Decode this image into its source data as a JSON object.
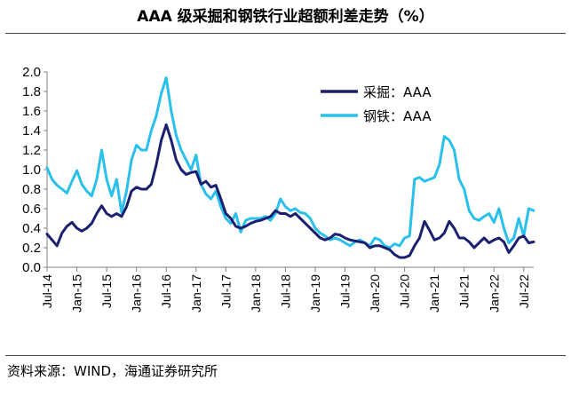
{
  "title": "AAA 级采掘和钢铁行业超额利差走势（%）",
  "source": "资料来源：WIND，海通证券研究所",
  "colors": {
    "mining": "#1a1f6e",
    "steel": "#29c0ec",
    "axis": "#808080"
  },
  "chart_data": {
    "type": "line",
    "title": "AAA 级采掘和钢铁行业超额利差走势（%）",
    "xlabel": "",
    "ylabel": "",
    "ylim": [
      0,
      2.0
    ],
    "yticks": [
      "2.0",
      "1.8",
      "1.6",
      "1.4",
      "1.2",
      "1.0",
      "0.8",
      "0.6",
      "0.4",
      "0.2",
      "0.0"
    ],
    "xlim": [
      0,
      98
    ],
    "xticks": [
      {
        "t": 0,
        "label": "Jul-14"
      },
      {
        "t": 6,
        "label": "Jan-15"
      },
      {
        "t": 12,
        "label": "Jul-15"
      },
      {
        "t": 18,
        "label": "Jan-16"
      },
      {
        "t": 24,
        "label": "Jul-16"
      },
      {
        "t": 30,
        "label": "Jan-17"
      },
      {
        "t": 36,
        "label": "Jul-17"
      },
      {
        "t": 42,
        "label": "Jan-18"
      },
      {
        "t": 48,
        "label": "Jul-18"
      },
      {
        "t": 54,
        "label": "Jan-19"
      },
      {
        "t": 60,
        "label": "Jul-19"
      },
      {
        "t": 66,
        "label": "Jan-20"
      },
      {
        "t": 72,
        "label": "Jul-20"
      },
      {
        "t": 78,
        "label": "Jan-21"
      },
      {
        "t": 84,
        "label": "Jul-21"
      },
      {
        "t": 90,
        "label": "Jan-22"
      },
      {
        "t": 96,
        "label": "Jul-22"
      }
    ],
    "legend_position": "top-right",
    "series": [
      {
        "name": "采掘：AAA",
        "points": [
          [
            0,
            0.34
          ],
          [
            1,
            0.28
          ],
          [
            2,
            0.22
          ],
          [
            3,
            0.35
          ],
          [
            4,
            0.42
          ],
          [
            5,
            0.46
          ],
          [
            6,
            0.4
          ],
          [
            7,
            0.37
          ],
          [
            8,
            0.4
          ],
          [
            9,
            0.45
          ],
          [
            10,
            0.55
          ],
          [
            11,
            0.63
          ],
          [
            12,
            0.55
          ],
          [
            13,
            0.52
          ],
          [
            14,
            0.55
          ],
          [
            15,
            0.52
          ],
          [
            16,
            0.62
          ],
          [
            17,
            0.78
          ],
          [
            18,
            0.82
          ],
          [
            19,
            0.8
          ],
          [
            20,
            0.8
          ],
          [
            21,
            0.85
          ],
          [
            22,
            1.05
          ],
          [
            23,
            1.3
          ],
          [
            24,
            1.46
          ],
          [
            25,
            1.3
          ],
          [
            26,
            1.1
          ],
          [
            27,
            1.0
          ],
          [
            28,
            0.95
          ],
          [
            29,
            0.97
          ],
          [
            30,
            0.98
          ],
          [
            31,
            0.85
          ],
          [
            32,
            0.88
          ],
          [
            33,
            0.82
          ],
          [
            34,
            0.84
          ],
          [
            35,
            0.7
          ],
          [
            36,
            0.55
          ],
          [
            37,
            0.5
          ],
          [
            38,
            0.42
          ],
          [
            39,
            0.4
          ],
          [
            40,
            0.42
          ],
          [
            41,
            0.45
          ],
          [
            42,
            0.47
          ],
          [
            43,
            0.48
          ],
          [
            44,
            0.5
          ],
          [
            45,
            0.52
          ],
          [
            46,
            0.58
          ],
          [
            47,
            0.55
          ],
          [
            48,
            0.55
          ],
          [
            49,
            0.52
          ],
          [
            50,
            0.55
          ],
          [
            51,
            0.5
          ],
          [
            52,
            0.45
          ],
          [
            53,
            0.4
          ],
          [
            54,
            0.35
          ],
          [
            55,
            0.3
          ],
          [
            56,
            0.28
          ],
          [
            57,
            0.3
          ],
          [
            58,
            0.34
          ],
          [
            59,
            0.33
          ],
          [
            60,
            0.3
          ],
          [
            61,
            0.28
          ],
          [
            62,
            0.27
          ],
          [
            63,
            0.26
          ],
          [
            64,
            0.25
          ],
          [
            65,
            0.2
          ],
          [
            66,
            0.22
          ],
          [
            67,
            0.22
          ],
          [
            68,
            0.2
          ],
          [
            69,
            0.18
          ],
          [
            70,
            0.13
          ],
          [
            71,
            0.1
          ],
          [
            72,
            0.1
          ],
          [
            73,
            0.12
          ],
          [
            74,
            0.22
          ],
          [
            75,
            0.3
          ],
          [
            76,
            0.47
          ],
          [
            77,
            0.38
          ],
          [
            78,
            0.28
          ],
          [
            79,
            0.3
          ],
          [
            80,
            0.35
          ],
          [
            81,
            0.47
          ],
          [
            82,
            0.4
          ],
          [
            83,
            0.3
          ],
          [
            84,
            0.3
          ],
          [
            85,
            0.26
          ],
          [
            86,
            0.2
          ],
          [
            87,
            0.25
          ],
          [
            88,
            0.3
          ],
          [
            89,
            0.25
          ],
          [
            90,
            0.28
          ],
          [
            91,
            0.3
          ],
          [
            92,
            0.26
          ],
          [
            93,
            0.15
          ],
          [
            94,
            0.22
          ],
          [
            95,
            0.3
          ],
          [
            96,
            0.32
          ],
          [
            97,
            0.25
          ],
          [
            98,
            0.26
          ]
        ]
      },
      {
        "name": "钢铁：AAA",
        "points": [
          [
            0,
            1.02
          ],
          [
            1,
            0.9
          ],
          [
            2,
            0.84
          ],
          [
            3,
            0.8
          ],
          [
            4,
            0.76
          ],
          [
            5,
            0.88
          ],
          [
            6,
            0.99
          ],
          [
            7,
            0.85
          ],
          [
            8,
            0.78
          ],
          [
            9,
            0.73
          ],
          [
            10,
            0.9
          ],
          [
            11,
            1.2
          ],
          [
            12,
            0.9
          ],
          [
            13,
            0.73
          ],
          [
            14,
            0.9
          ],
          [
            15,
            0.56
          ],
          [
            16,
            0.78
          ],
          [
            17,
            1.1
          ],
          [
            18,
            1.25
          ],
          [
            19,
            1.2
          ],
          [
            20,
            1.2
          ],
          [
            21,
            1.4
          ],
          [
            22,
            1.55
          ],
          [
            23,
            1.78
          ],
          [
            24,
            1.94
          ],
          [
            25,
            1.6
          ],
          [
            26,
            1.35
          ],
          [
            27,
            1.2
          ],
          [
            28,
            1.1
          ],
          [
            29,
            1.0
          ],
          [
            30,
            1.15
          ],
          [
            31,
            0.85
          ],
          [
            32,
            0.75
          ],
          [
            33,
            0.7
          ],
          [
            34,
            0.78
          ],
          [
            35,
            0.62
          ],
          [
            36,
            0.5
          ],
          [
            37,
            0.45
          ],
          [
            38,
            0.55
          ],
          [
            39,
            0.36
          ],
          [
            40,
            0.48
          ],
          [
            41,
            0.5
          ],
          [
            42,
            0.5
          ],
          [
            43,
            0.5
          ],
          [
            44,
            0.52
          ],
          [
            45,
            0.48
          ],
          [
            46,
            0.55
          ],
          [
            47,
            0.7
          ],
          [
            48,
            0.62
          ],
          [
            49,
            0.58
          ],
          [
            50,
            0.6
          ],
          [
            51,
            0.56
          ],
          [
            52,
            0.55
          ],
          [
            53,
            0.5
          ],
          [
            54,
            0.4
          ],
          [
            55,
            0.35
          ],
          [
            56,
            0.32
          ],
          [
            57,
            0.28
          ],
          [
            58,
            0.3
          ],
          [
            59,
            0.28
          ],
          [
            60,
            0.25
          ],
          [
            61,
            0.22
          ],
          [
            62,
            0.26
          ],
          [
            63,
            0.28
          ],
          [
            64,
            0.25
          ],
          [
            65,
            0.22
          ],
          [
            66,
            0.3
          ],
          [
            67,
            0.28
          ],
          [
            68,
            0.22
          ],
          [
            69,
            0.2
          ],
          [
            70,
            0.24
          ],
          [
            71,
            0.22
          ],
          [
            72,
            0.3
          ],
          [
            73,
            0.32
          ],
          [
            74,
            0.9
          ],
          [
            75,
            0.92
          ],
          [
            76,
            0.88
          ],
          [
            77,
            0.9
          ],
          [
            78,
            0.92
          ],
          [
            79,
            1.05
          ],
          [
            80,
            1.34
          ],
          [
            81,
            1.3
          ],
          [
            82,
            1.2
          ],
          [
            83,
            0.9
          ],
          [
            84,
            0.8
          ],
          [
            85,
            0.58
          ],
          [
            86,
            0.5
          ],
          [
            87,
            0.48
          ],
          [
            88,
            0.52
          ],
          [
            89,
            0.55
          ],
          [
            90,
            0.46
          ],
          [
            91,
            0.6
          ],
          [
            92,
            0.4
          ],
          [
            93,
            0.25
          ],
          [
            94,
            0.3
          ],
          [
            95,
            0.5
          ],
          [
            96,
            0.32
          ],
          [
            97,
            0.6
          ],
          [
            98,
            0.58
          ]
        ]
      }
    ]
  }
}
